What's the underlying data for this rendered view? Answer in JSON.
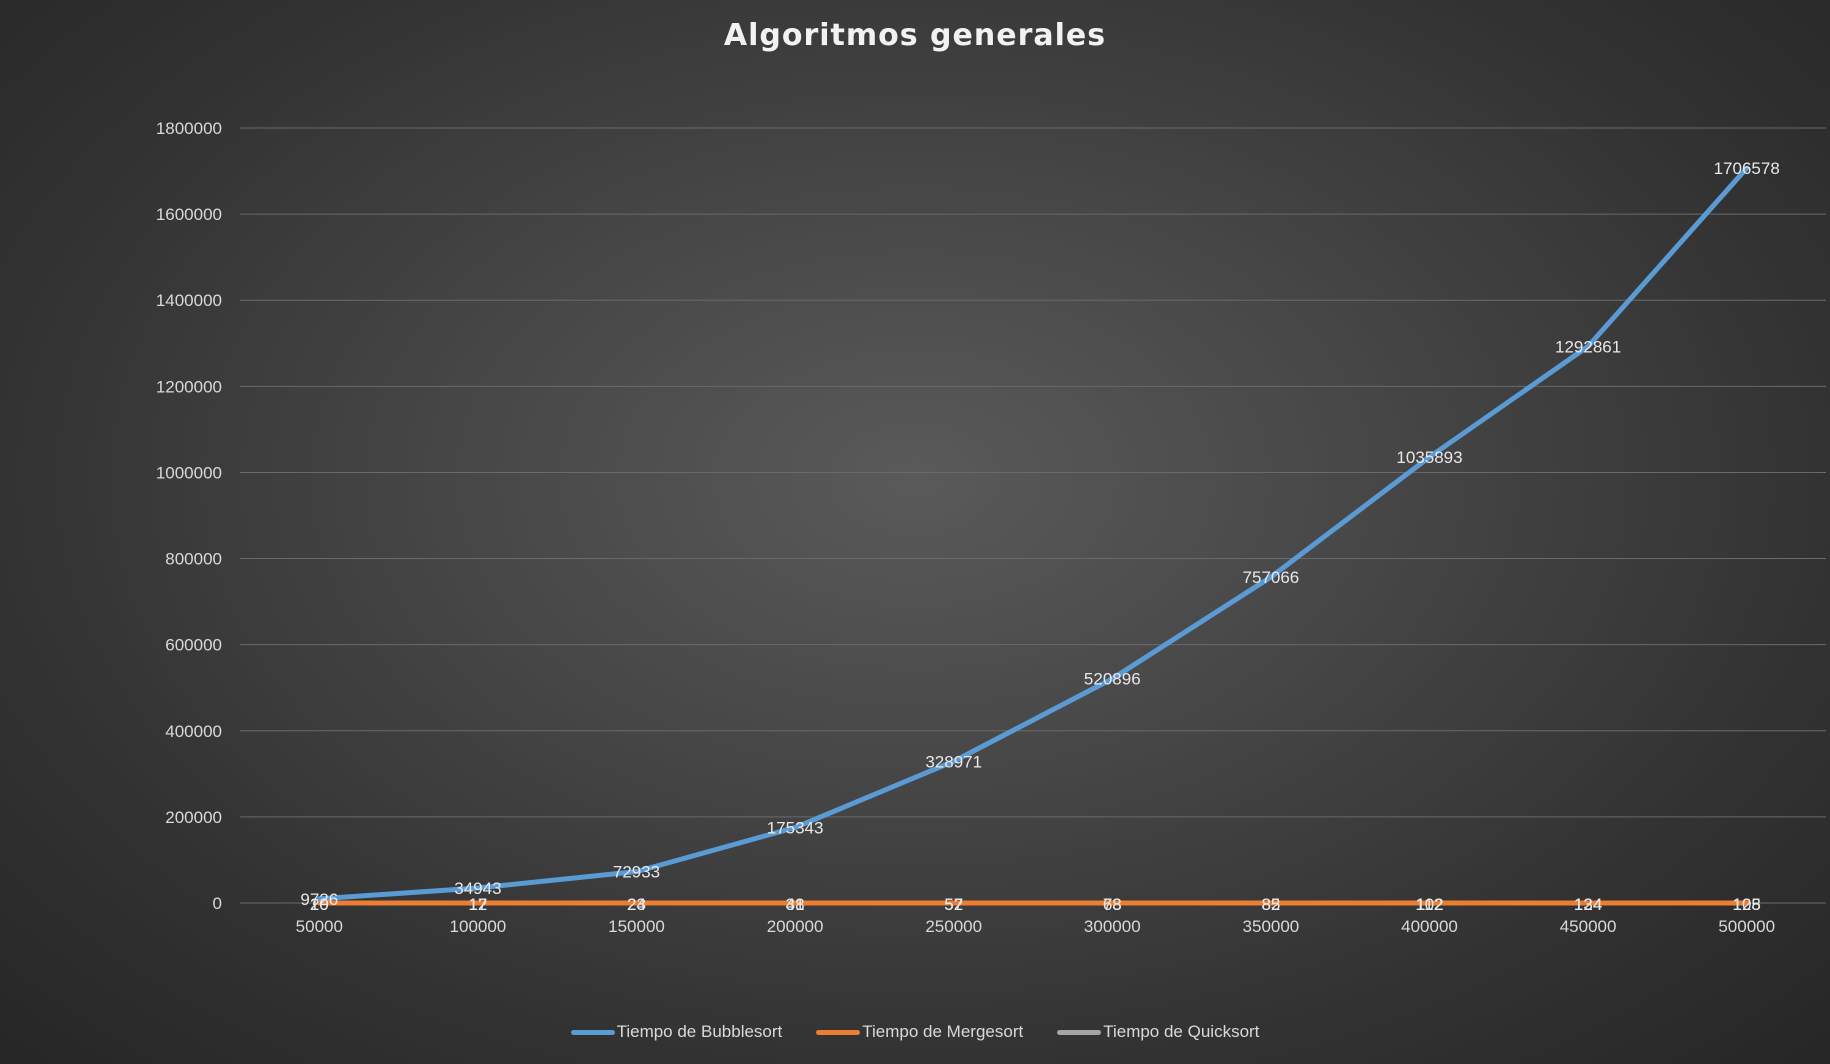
{
  "chart_data": {
    "type": "line",
    "title": "Algoritmos generales",
    "xlabel": "",
    "ylabel": "",
    "categories": [
      "50000",
      "100000",
      "150000",
      "200000",
      "250000",
      "300000",
      "350000",
      "400000",
      "450000",
      "500000"
    ],
    "ylim": [
      0,
      1800000
    ],
    "yticks": [
      "0",
      "200000",
      "400000",
      "600000",
      "800000",
      "1000000",
      "1200000",
      "1400000",
      "1600000",
      "1800000"
    ],
    "grid": true,
    "legend_position": "bottom",
    "series": [
      {
        "name": "Tiempo de Bubblesort",
        "color": "#5b9bd5",
        "values": [
          9726,
          34943,
          72933,
          175343,
          328971,
          520896,
          757066,
          1035893,
          1292861,
          1706578
        ],
        "labels": [
          "9726",
          "34943",
          "72933",
          "175343",
          "328971",
          "520896",
          "757066",
          "1035893",
          "1292861",
          "1706578"
        ]
      },
      {
        "name": "Tiempo de Mergesort",
        "color": "#ed7d31",
        "values": [
          20,
          17,
          24,
          38,
          57,
          73,
          82,
          112,
          124,
          105
        ],
        "labels": [
          "20",
          "17",
          "24",
          "38",
          "57",
          "73",
          "82",
          "112",
          "124",
          "105"
        ]
      },
      {
        "name": "Tiempo de Quicksort",
        "color": "#a5a5a5",
        "values": [
          10,
          12,
          23,
          41,
          52,
          68,
          85,
          102,
          134,
          128
        ],
        "labels": [
          "10",
          "12",
          "23",
          "41",
          "52",
          "68",
          "85",
          "102",
          "134",
          "128"
        ]
      }
    ]
  }
}
